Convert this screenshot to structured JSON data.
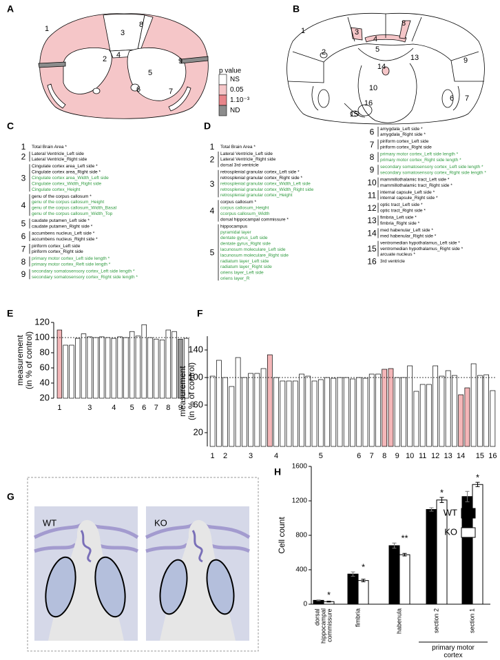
{
  "panel_labels": [
    "A",
    "B",
    "C",
    "D",
    "E",
    "F",
    "G",
    "H"
  ],
  "panel_a": {
    "regions": [
      "1",
      "2",
      "3",
      "4",
      "5",
      "6",
      "7",
      "8",
      "9"
    ],
    "legend": {
      "title": "p value",
      "entries": [
        {
          "label": "NS",
          "color": "#ffffff"
        },
        {
          "label": "0.05",
          "color": "#f5c6c8"
        },
        {
          "label": "1.10⁻³",
          "color": "#e8858a"
        },
        {
          "label": "ND",
          "color": "#8c8c8c"
        }
      ]
    }
  },
  "panel_b": {
    "regions": [
      "1",
      "2",
      "3",
      "4",
      "5",
      "6",
      "7",
      "8",
      "9",
      "10",
      "13",
      "14",
      "15",
      "16"
    ]
  },
  "panel_c": {
    "groups": [
      {
        "number": "1",
        "items": [
          "Total Brain Area *"
        ]
      },
      {
        "number": "2",
        "items": [
          "Lateral Ventricle_Left side",
          "Lateral Ventricle_Right side"
        ]
      },
      {
        "number": "3",
        "items": [
          "Cingulate cortex area_Left side *",
          "Cingulate cortex area_Right side *",
          {
            "text": "Cingulate cortex area_Width_Left side",
            "color": "#2e9a3e"
          },
          {
            "text": "Cingulate cortex_Width_Right side",
            "color": "#2e9a3e"
          },
          {
            "text": "Cingulate cortex_Height",
            "color": "#2e9a3e"
          }
        ]
      },
      {
        "number": "4",
        "items": [
          "genu of the corpus callosum *",
          {
            "text": "genu of the corpus callosum_Height",
            "color": "#2e9a3e"
          },
          {
            "text": "genu of the corpus callosum_Width_Basal",
            "color": "#2e9a3e"
          },
          {
            "text": "genu of the corpus callosum_Width_Top",
            "color": "#2e9a3e"
          }
        ]
      },
      {
        "number": "5",
        "items": [
          "caudate putamen_Left side *",
          "caudate putamen_Right side *"
        ]
      },
      {
        "number": "6",
        "items": [
          "accumbens nucleus_Left side *",
          "accumbens nucleus_Right side *"
        ]
      },
      {
        "number": "7",
        "items": [
          "piriform cortex_Left side",
          "piriform cortex_Right side"
        ]
      },
      {
        "number": "8",
        "items": [
          {
            "text": "primary motor cortex_Left side length *",
            "color": "#2e9a3e"
          },
          {
            "text": "primary motor cortex_Reft side length *",
            "color": "#2e9a3e"
          }
        ]
      },
      {
        "number": "9",
        "items": [
          {
            "text": "secondary somatosensory cortex_Left side length *",
            "color": "#2e9a3e"
          },
          {
            "text": "secondary somatosensory cortex_Right side length *",
            "color": "#2e9a3e"
          }
        ]
      }
    ]
  },
  "panel_d": {
    "columns": [
      {
        "groups": [
          {
            "number": "1",
            "items": [
              "Total Brain Area *"
            ]
          },
          {
            "number": "2",
            "items": [
              "Lateral Ventricle_Left side",
              "Lateral Ventricle_Right side",
              "dorsal 3rd ventricle"
            ]
          },
          {
            "number": "3",
            "items": [
              "retrosplenial granular cortex_Left side *",
              "retrosplenial granular cortex_Right side *",
              {
                "text": "retrosplenial granular cortex_Width_Left side",
                "color": "#2e9a3e"
              },
              {
                "text": "retrosplenial granular cortex_Width_Right side",
                "color": "#2e9a3e"
              },
              {
                "text": "retrosplenial granular cortex_Height",
                "color": "#2e9a3e"
              }
            ]
          },
          {
            "number": "4",
            "items": [
              "corpus callosum *",
              {
                "text": "corpus callosum_Height",
                "color": "#2e9a3e"
              },
              {
                "text": "ccorpus callosum_Width",
                "color": "#2e9a3e"
              },
              "dorsal hippocampal commissure *"
            ]
          },
          {
            "number": "5",
            "items": [
              "hippocampus",
              {
                "text": "pyramidal layer",
                "color": "#2e9a3e"
              },
              {
                "text": "dentate gyrus_Left side",
                "color": "#2e9a3e"
              },
              {
                "text": "dentate gyrus_Right side",
                "color": "#2e9a3e"
              },
              {
                "text": "lacunosum moleculare_Left side",
                "color": "#2e9a3e"
              },
              {
                "text": "lacunosum moleculare_Right side",
                "color": "#2e9a3e"
              },
              {
                "text": "radiatum layer_Left side",
                "color": "#2e9a3e"
              },
              {
                "text": "radiatum layer_Right side",
                "color": "#2e9a3e"
              },
              {
                "text": "oriens layer_Left side",
                "color": "#2e9a3e"
              },
              {
                "text": "oriens layer_R",
                "color": "#2e9a3e"
              }
            ]
          }
        ]
      },
      {
        "groups": [
          {
            "number": "6",
            "items": [
              "amygdala_Left side *",
              "amygdala_Right side *"
            ]
          },
          {
            "number": "7",
            "items": [
              "piriform cortex_Left side",
              "piriform cortex_Right side"
            ]
          },
          {
            "number": "8",
            "items": [
              {
                "text": "primary motor cortex_Left side length *",
                "color": "#2e9a3e"
              },
              {
                "text": "primary motor cortex_Right side length *",
                "color": "#2e9a3e"
              }
            ]
          },
          {
            "number": "9",
            "items": [
              {
                "text": "secondary somatosensory cortex_Left side length *",
                "color": "#2e9a3e"
              },
              {
                "text": "secondary somatosensory cortex_Right side length *",
                "color": "#2e9a3e"
              }
            ]
          },
          {
            "number": "10",
            "items": [
              "mammillothalamic tract_Left side *",
              "mammillothalamic tract_Right side *"
            ]
          },
          {
            "number": "11",
            "items": [
              "internal capsule_Left side *",
              "internal capsule_Right side *"
            ]
          },
          {
            "number": "12",
            "items": [
              "optic tract_Left side *",
              "optic tract_Right side *"
            ]
          },
          {
            "number": "13",
            "items": [
              "fimbria_Left side *",
              "fimbria_Right side *"
            ]
          },
          {
            "number": "14",
            "items": [
              "med habenular_Left side *",
              "med habenular_Right side *"
            ]
          },
          {
            "number": "15",
            "items": [
              "ventromedian hypothalamus_Left side *",
              "ventromedian hypothalamus_Right side *",
              "arcuate nucleus *"
            ]
          },
          {
            "number": "16",
            "items": [
              "3rd ventricle"
            ]
          }
        ]
      }
    ]
  },
  "panel_g": {
    "labels": [
      "WT",
      "KO"
    ]
  },
  "chart_data": [
    {
      "type": "bar",
      "ylabel": [
        "measurement",
        "(in % of control)"
      ],
      "categories": [
        "1",
        null,
        null,
        null,
        null,
        "3",
        null,
        null,
        null,
        "4",
        null,
        null,
        "5",
        null,
        "6",
        null,
        "7",
        null,
        "8",
        null,
        "9",
        null
      ],
      "values": [
        110,
        90,
        90,
        99,
        105,
        101,
        100,
        101,
        100,
        99,
        101,
        100,
        108,
        102,
        117,
        100,
        98,
        97,
        110,
        108,
        98,
        99
      ],
      "colors": [
        "#f4b6b8",
        "#ffffff",
        "#ffffff",
        "#ffffff",
        "#ffffff",
        "#ffffff",
        "#ffffff",
        "#ffffff",
        "#ffffff",
        "#ffffff",
        "#ffffff",
        "#ffffff",
        "#ffffff",
        "#ffffff",
        "#ffffff",
        "#ffffff",
        "#ffffff",
        "#ffffff",
        "#ffffff",
        "#ffffff",
        "#999999",
        "#ffffff"
      ],
      "ylim": [
        20,
        120
      ],
      "yticks": [
        20,
        40,
        60,
        80,
        100,
        120
      ],
      "reference_line": 100
    },
    {
      "type": "bar",
      "ylabel": [
        "measurement",
        "(in % of control)"
      ],
      "categories": [
        "1",
        null,
        "2",
        null,
        null,
        null,
        "3",
        null,
        null,
        null,
        "4",
        null,
        null,
        null,
        null,
        null,
        null,
        "5",
        null,
        null,
        null,
        null,
        null,
        "6",
        null,
        "7",
        null,
        "8",
        null,
        "9",
        null,
        "10",
        null,
        "11",
        null,
        "12",
        null,
        "13",
        null,
        "14",
        null,
        null,
        "15",
        null,
        "16"
      ],
      "values": [
        102,
        125,
        100,
        87,
        129,
        100,
        106,
        106,
        113,
        133,
        100,
        95,
        95,
        95,
        105,
        102,
        95,
        97,
        100,
        99,
        100,
        100,
        98,
        100,
        99,
        105,
        105,
        112,
        113,
        100,
        100,
        117,
        80,
        90,
        90,
        117,
        102,
        110,
        103,
        75,
        85,
        120,
        103,
        104,
        81
      ],
      "colors": [
        "#ffffff",
        "#ffffff",
        "#ffffff",
        "#ffffff",
        "#ffffff",
        "#ffffff",
        "#ffffff",
        "#ffffff",
        "#ffffff",
        "#f4b6b8",
        "#ffffff",
        "#ffffff",
        "#ffffff",
        "#ffffff",
        "#ffffff",
        "#ffffff",
        "#ffffff",
        "#ffffff",
        "#ffffff",
        "#ffffff",
        "#ffffff",
        "#ffffff",
        "#ffffff",
        "#ffffff",
        "#ffffff",
        "#ffffff",
        "#ffffff",
        "#f4b6b8",
        "#f4b6b8",
        "#ffffff",
        "#ffffff",
        "#ffffff",
        "#ffffff",
        "#ffffff",
        "#ffffff",
        "#ffffff",
        "#ffffff",
        "#ffffff",
        "#ffffff",
        "#f4b6b8",
        "#f4b6b8",
        "#ffffff",
        "#ffffff",
        "#ffffff",
        "#ffffff"
      ],
      "ylim": [
        0,
        160
      ],
      "yticks": [
        20,
        60,
        100,
        140
      ],
      "reference_line": 100
    },
    {
      "type": "grouped_bar",
      "ylabel": "Cell count",
      "categories": [
        "dorsal hippocampal commissure",
        "fimbria",
        "habenula",
        "section 2",
        "section 1"
      ],
      "category_group": "primary motor cortex",
      "series": [
        {
          "name": "WT",
          "color": "#000000",
          "values": [
            45,
            350,
            680,
            1100,
            1250
          ],
          "errors": [
            5,
            25,
            30,
            20,
            60
          ]
        },
        {
          "name": "KO",
          "color": "#ffffff",
          "values": [
            30,
            275,
            575,
            1210,
            1390
          ],
          "errors": [
            5,
            15,
            15,
            30,
            25
          ]
        }
      ],
      "annotations": [
        "*",
        "*",
        "**",
        "*",
        "*"
      ],
      "ylim": [
        0,
        1600
      ],
      "yticks": [
        0,
        400,
        800,
        1200,
        1600
      ]
    }
  ]
}
